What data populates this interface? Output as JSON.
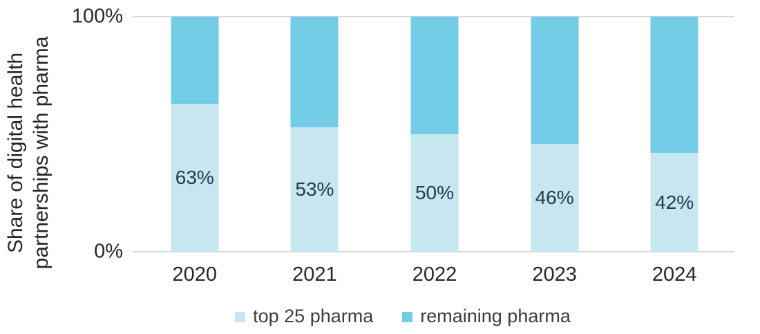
{
  "chart_data": {
    "type": "bar",
    "stacked": true,
    "orientation": "vertical",
    "categories": [
      "2020",
      "2021",
      "2022",
      "2023",
      "2024"
    ],
    "series": [
      {
        "name": "top 25 pharma",
        "values": [
          63,
          53,
          50,
          46,
          42
        ],
        "labels": [
          "63%",
          "53%",
          "50%",
          "46%",
          "42%"
        ],
        "color": "#c6e7f0"
      },
      {
        "name": "remaining pharma",
        "values": [
          37,
          47,
          50,
          54,
          58
        ],
        "labels": [],
        "color": "#74cde6"
      }
    ],
    "ylabel_line1": "Share of digital health",
    "ylabel_line2": "partnerships with pharma",
    "yticks": [
      "100%",
      "0%"
    ],
    "ylim": [
      0,
      100
    ],
    "grid": "horizontal rules at 0% and 100% only",
    "legend_position": "bottom-center"
  },
  "colors": {
    "axis_rule": "#d9d9d9",
    "axis_text": "#262626",
    "bar_label_text": "#25394a",
    "legend_text": "#3d3d3d",
    "background": "#ffffff"
  }
}
